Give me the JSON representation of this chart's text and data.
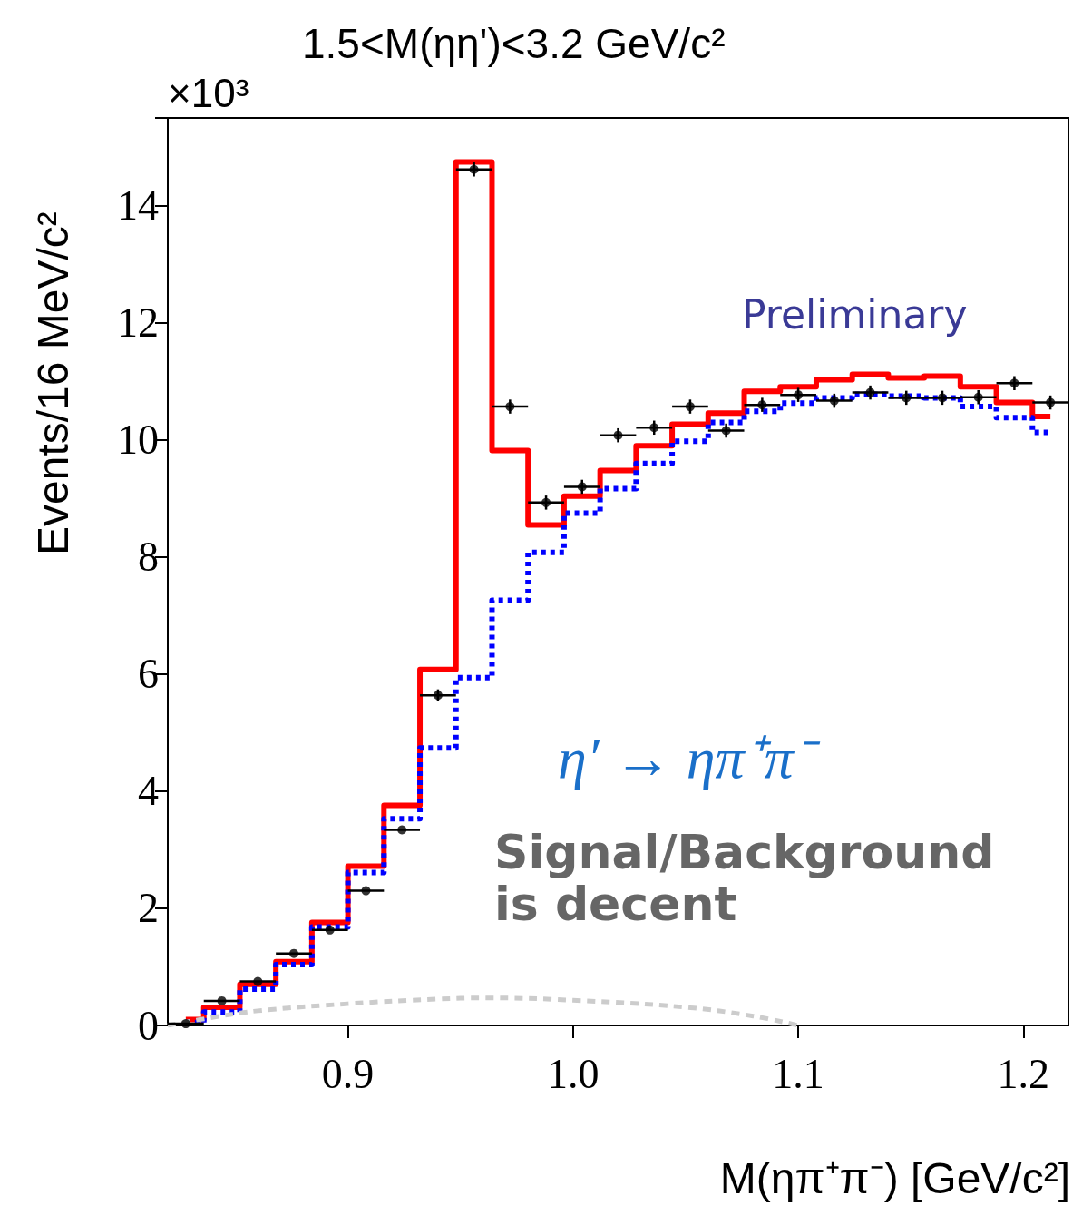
{
  "chart_data": {
    "type": "step",
    "title": "1.5<M(ηη')<3.2 GeV/c²",
    "xlabel": "M(ηπ⁺π⁻) [GeV/c²]",
    "ylabel": "Events/16 MeV/c²",
    "annotations": [
      "×10³",
      "η′ → ηπ⁺π⁻",
      "Signal/Background is decent",
      "Preliminary"
    ],
    "xlim": [
      0.82,
      1.22
    ],
    "xticks": [
      0.9,
      {
        "value": 1.0,
        "label": "1.0"
      },
      1.1,
      1.2
    ],
    "ylim": [
      0,
      15.5
    ],
    "yticks": [
      0,
      2,
      4,
      6,
      8,
      10,
      12,
      14
    ],
    "grid": false,
    "series": [
      {
        "color": "#ff0000",
        "line_style": "solid",
        "marker": "none",
        "x": [
          0.828,
          0.844,
          0.86,
          0.876,
          0.892,
          0.908,
          0.924,
          0.94,
          0.956,
          0.972,
          0.988,
          1.004,
          1.02,
          1.036,
          1.052,
          1.068,
          1.084,
          1.1,
          1.116,
          1.132,
          1.148,
          1.164,
          1.18,
          1.196,
          1.212
        ],
        "values": [
          0.1,
          0.31,
          0.7,
          1.09,
          1.76,
          2.72,
          3.76,
          6.08,
          14.75,
          9.82,
          8.55,
          9.04,
          9.48,
          9.9,
          10.27,
          10.46,
          10.83,
          10.91,
          11.03,
          11.12,
          11.06,
          11.09,
          10.91,
          10.64,
          10.4
        ]
      },
      {
        "color": "#0000ff",
        "line_style": "dotted",
        "marker": "none",
        "x": [
          0.828,
          0.844,
          0.86,
          0.876,
          0.892,
          0.908,
          0.924,
          0.94,
          0.956,
          0.972,
          0.988,
          1.004,
          1.02,
          1.036,
          1.052,
          1.068,
          1.084,
          1.1,
          1.116,
          1.132,
          1.148,
          1.164,
          1.18,
          1.196,
          1.212
        ],
        "values": [
          0.05,
          0.23,
          0.62,
          1.04,
          1.68,
          2.61,
          3.53,
          4.74,
          5.94,
          7.26,
          8.08,
          8.75,
          9.17,
          9.6,
          9.98,
          10.3,
          10.49,
          10.63,
          10.72,
          10.78,
          10.75,
          10.72,
          10.57,
          10.38,
          10.13
        ]
      },
      {
        "type": "line",
        "color": "#cccccc",
        "line_style": "dashed",
        "marker": "none",
        "x": [
          0.82,
          0.842,
          0.86,
          0.9,
          0.94,
          0.96,
          1.0,
          1.05,
          1.08,
          1.1
        ],
        "values": [
          0,
          0.15,
          0.25,
          0.37,
          0.45,
          0.47,
          0.43,
          0.31,
          0.16,
          0
        ]
      },
      {
        "type": "scatter",
        "color": "#000000",
        "marker": "circle",
        "x": [
          0.828,
          0.844,
          0.86,
          0.876,
          0.892,
          0.908,
          0.924,
          0.94,
          0.956,
          0.972,
          0.988,
          1.004,
          1.02,
          1.036,
          1.052,
          1.068,
          1.084,
          1.1,
          1.116,
          1.132,
          1.148,
          1.164,
          1.18,
          1.196,
          1.212
        ],
        "values": [
          0.03,
          0.42,
          0.75,
          1.23,
          1.63,
          2.3,
          3.34,
          5.64,
          14.62,
          10.57,
          8.93,
          9.2,
          10.08,
          10.21,
          10.57,
          10.16,
          10.6,
          10.77,
          10.67,
          10.81,
          10.72,
          10.72,
          10.73,
          10.97,
          10.64
        ],
        "xerrors": [
          0.008,
          0.008,
          0.008,
          0.008,
          0.008,
          0.008,
          0.008,
          0.008,
          0.008,
          0.008,
          0.008,
          0.008,
          0.008,
          0.008,
          0.008,
          0.008,
          0.008,
          0.008,
          0.008,
          0.008,
          0.008,
          0.008,
          0.008,
          0.008,
          0.008
        ],
        "errors": [
          null,
          null,
          null,
          null,
          null,
          null,
          null,
          0.1,
          0.12,
          0.12,
          0.12,
          0.12,
          0.12,
          0.12,
          0.12,
          0.12,
          0.12,
          0.12,
          0.12,
          0.12,
          0.12,
          0.12,
          0.12,
          0.12,
          0.12
        ]
      }
    ]
  }
}
